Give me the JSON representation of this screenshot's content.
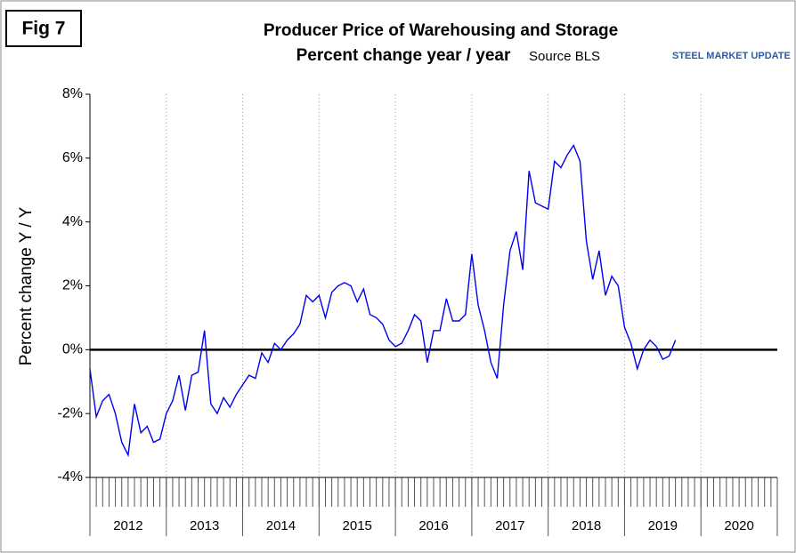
{
  "chart_data": {
    "type": "line",
    "figure_label": "Fig 7",
    "title": "Producer Price of Warehousing and Storage",
    "subtitle": "Percent change year / year",
    "source": "Source BLS",
    "logo": "STEEL MARKET UPDATE",
    "y_label": "Percent change Y / Y",
    "color": "#0000ee",
    "xlim": [
      2012,
      2021
    ],
    "xticks": [
      2012,
      2013,
      2014,
      2015,
      2016,
      2017,
      2018,
      2019,
      2020
    ],
    "ylim": [
      -4,
      8
    ],
    "yticks": [
      {
        "value": -4,
        "label": "-4%"
      },
      {
        "value": -2,
        "label": "-2%"
      },
      {
        "value": 0,
        "label": "0%"
      },
      {
        "value": 2,
        "label": "2%"
      },
      {
        "value": 4,
        "label": "4%"
      },
      {
        "value": 6,
        "label": "6%"
      },
      {
        "value": 8,
        "label": "8%"
      }
    ],
    "grid": true,
    "x": [
      2012,
      2012.083,
      2012.167,
      2012.25,
      2012.333,
      2012.417,
      2012.5,
      2012.583,
      2012.667,
      2012.75,
      2012.833,
      2012.917,
      2013,
      2013.083,
      2013.167,
      2013.25,
      2013.333,
      2013.417,
      2013.5,
      2013.583,
      2013.667,
      2013.75,
      2013.833,
      2013.917,
      2014,
      2014.083,
      2014.167,
      2014.25,
      2014.333,
      2014.417,
      2014.5,
      2014.583,
      2014.667,
      2014.75,
      2014.833,
      2014.917,
      2015,
      2015.083,
      2015.167,
      2015.25,
      2015.333,
      2015.417,
      2015.5,
      2015.583,
      2015.667,
      2015.75,
      2015.833,
      2015.917,
      2016,
      2016.083,
      2016.167,
      2016.25,
      2016.333,
      2016.417,
      2016.5,
      2016.583,
      2016.667,
      2016.75,
      2016.833,
      2016.917,
      2017,
      2017.083,
      2017.167,
      2017.25,
      2017.333,
      2017.417,
      2017.5,
      2017.583,
      2017.667,
      2017.75,
      2017.833,
      2017.917,
      2018,
      2018.083,
      2018.167,
      2018.25,
      2018.333,
      2018.417,
      2018.5,
      2018.583,
      2018.667,
      2018.75,
      2018.833,
      2018.917,
      2019,
      2019.083,
      2019.167,
      2019.25,
      2019.333,
      2019.417,
      2019.5,
      2019.583,
      2019.667
    ],
    "values": [
      -0.6,
      -2.1,
      -1.6,
      -1.4,
      -2.0,
      -2.9,
      -3.3,
      -1.7,
      -2.6,
      -2.4,
      -2.9,
      -2.8,
      -2.0,
      -1.6,
      -0.8,
      -1.9,
      -0.8,
      -0.7,
      0.6,
      -1.7,
      -2.0,
      -1.5,
      -1.8,
      -1.4,
      -1.1,
      -0.8,
      -0.9,
      -0.1,
      -0.4,
      0.2,
      0.0,
      0.3,
      0.5,
      0.8,
      1.7,
      1.5,
      1.7,
      1.0,
      1.8,
      2.0,
      2.1,
      2.0,
      1.5,
      1.9,
      1.1,
      1.0,
      0.8,
      0.3,
      0.1,
      0.2,
      0.6,
      1.1,
      0.9,
      -0.4,
      0.6,
      0.6,
      1.6,
      0.9,
      0.9,
      1.1,
      3.0,
      1.4,
      0.6,
      -0.4,
      -0.9,
      1.4,
      3.1,
      3.7,
      2.5,
      5.6,
      4.6,
      4.5,
      4.4,
      5.9,
      5.7,
      6.1,
      6.4,
      5.9,
      3.4,
      2.2,
      3.1,
      1.7,
      2.3,
      2.0,
      0.7,
      0.2,
      -0.6,
      0.0,
      0.3,
      0.1,
      -0.3,
      -0.2,
      0.3
    ]
  }
}
